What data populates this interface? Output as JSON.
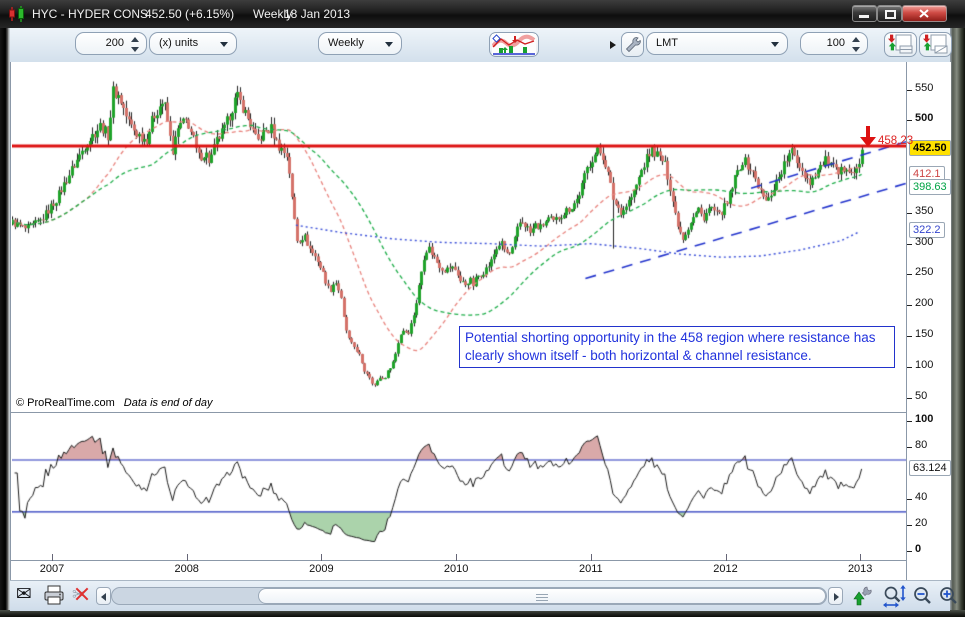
{
  "window": {
    "title": {
      "symbol": "HYC - HYDER CONS",
      "price": "452.50 (+6.15%)",
      "timeframe": "Weekly",
      "date": "18 Jan 2013"
    }
  },
  "toolbar": {
    "units_value": "200",
    "units_mode": "(x) units",
    "timeframe": "Weekly",
    "order_type": "LMT",
    "order_qty": "100"
  },
  "footer": {
    "copyright": "© ProRealTime.com",
    "note": "Data is end of day"
  },
  "annotation": {
    "text": "Potential shorting opportunity in the 458 region where resistance has clearly shown itself - both horizontal & channel resistance."
  },
  "chart_data": {
    "type": "candlestick",
    "symbol": "HYC - HYDER CONS",
    "timeframe": "Weekly",
    "last_date": "18 Jan 2013",
    "colors": {
      "up": "#1fa32a",
      "down": "#d4726a",
      "wick": "#222222",
      "ma_red": "#e8837d",
      "ma_green": "#1fae4a",
      "ma_blue": "#3a4fd8",
      "channel": "#2233cc",
      "resistance": "#dd1111",
      "last_box_bg": "#ffe100",
      "rsi_line": "#1a1a1a",
      "rsi_level": "#2233bb",
      "rsi_over_fill": "#d9a9a9",
      "rsi_under_fill": "#abd3ab"
    },
    "x_axis": {
      "years": [
        2007,
        2008,
        2009,
        2010,
        2011,
        2012,
        2013
      ],
      "year_min": 2006.703,
      "year_max": 2013.34
    },
    "y_axis": {
      "price_min": 27,
      "price_max": 593,
      "ticks": [
        {
          "label": "550",
          "value": 550,
          "bold": false
        },
        {
          "label": "500",
          "value": 500,
          "bold": true
        },
        {
          "label": "350",
          "value": 350,
          "bold": false
        },
        {
          "label": "300",
          "value": 300,
          "bold": false
        },
        {
          "label": "250",
          "value": 250,
          "bold": false
        },
        {
          "label": "200",
          "value": 200,
          "bold": false
        },
        {
          "label": "150",
          "value": 150,
          "bold": false
        },
        {
          "label": "100",
          "value": 100,
          "bold": false
        },
        {
          "label": "50",
          "value": 50,
          "bold": false
        }
      ]
    },
    "resistance": {
      "level": 458.23,
      "label": "458.23"
    },
    "last_price": {
      "value": 452.5,
      "label": "452.50"
    },
    "ma": {
      "red": {
        "period": 30,
        "label": "412.1"
      },
      "green": {
        "period": 55,
        "label": "398.63"
      },
      "blue": {
        "label": "322.2",
        "anchors": [
          [
            2008.81,
            330
          ],
          [
            2009.15,
            318
          ],
          [
            2009.52,
            308
          ],
          [
            2009.89,
            302
          ],
          [
            2010.26,
            300
          ],
          [
            2010.63,
            296
          ],
          [
            2011.0,
            300
          ],
          [
            2011.37,
            292
          ],
          [
            2011.67,
            283
          ],
          [
            2011.97,
            278
          ],
          [
            2012.26,
            280
          ],
          [
            2012.56,
            290
          ],
          [
            2012.86,
            305
          ],
          [
            2013.0,
            320
          ]
        ]
      }
    },
    "channel": {
      "upper": [
        [
          2012.19,
          390
        ],
        [
          2013.35,
          466
        ]
      ],
      "lower": [
        [
          2010.96,
          243.5
        ],
        [
          2013.35,
          398.4
        ]
      ]
    },
    "candles": {
      "year_start": 2006.703,
      "year_end": 2013.02,
      "weeks_per_step": 1,
      "anchors": [
        [
          2006.7,
          335
        ],
        [
          2006.81,
          323
        ],
        [
          2006.92,
          338
        ],
        [
          2007.03,
          372
        ],
        [
          2007.14,
          418
        ],
        [
          2007.25,
          462
        ],
        [
          2007.36,
          492
        ],
        [
          2007.42,
          474
        ],
        [
          2007.45,
          548
        ],
        [
          2007.5,
          538
        ],
        [
          2007.56,
          500
        ],
        [
          2007.62,
          480
        ],
        [
          2007.7,
          468
        ],
        [
          2007.75,
          505
        ],
        [
          2007.8,
          524
        ],
        [
          2007.83,
          531
        ],
        [
          2007.87,
          482
        ],
        [
          2007.89,
          446
        ],
        [
          2007.94,
          490
        ],
        [
          2008.0,
          500
        ],
        [
          2008.05,
          468
        ],
        [
          2008.08,
          440
        ],
        [
          2008.14,
          447
        ],
        [
          2008.17,
          432
        ],
        [
          2008.22,
          466
        ],
        [
          2008.28,
          486
        ],
        [
          2008.33,
          516
        ],
        [
          2008.37,
          540
        ],
        [
          2008.42,
          519
        ],
        [
          2008.48,
          489
        ],
        [
          2008.52,
          464
        ],
        [
          2008.57,
          479
        ],
        [
          2008.63,
          487
        ],
        [
          2008.67,
          461
        ],
        [
          2008.71,
          452
        ],
        [
          2008.75,
          441
        ],
        [
          2008.78,
          372
        ],
        [
          2008.82,
          304
        ],
        [
          2008.87,
          313
        ],
        [
          2008.92,
          289
        ],
        [
          2008.97,
          274
        ],
        [
          2009.02,
          246
        ],
        [
          2009.06,
          222
        ],
        [
          2009.1,
          241
        ],
        [
          2009.14,
          217
        ],
        [
          2009.17,
          170
        ],
        [
          2009.21,
          139
        ],
        [
          2009.25,
          131
        ],
        [
          2009.28,
          119
        ],
        [
          2009.31,
          95
        ],
        [
          2009.35,
          88
        ],
        [
          2009.37,
          77
        ],
        [
          2009.4,
          69
        ],
        [
          2009.43,
          84
        ],
        [
          2009.46,
          79
        ],
        [
          2009.5,
          96
        ],
        [
          2009.54,
          113
        ],
        [
          2009.58,
          151
        ],
        [
          2009.61,
          161
        ],
        [
          2009.64,
          154
        ],
        [
          2009.67,
          173
        ],
        [
          2009.7,
          201
        ],
        [
          2009.73,
          241
        ],
        [
          2009.76,
          279
        ],
        [
          2009.79,
          296
        ],
        [
          2009.82,
          284
        ],
        [
          2009.86,
          269
        ],
        [
          2009.89,
          261
        ],
        [
          2009.92,
          257
        ],
        [
          2009.96,
          262
        ],
        [
          2010.0,
          257
        ],
        [
          2010.03,
          239
        ],
        [
          2010.07,
          234
        ],
        [
          2010.1,
          243
        ],
        [
          2010.13,
          231
        ],
        [
          2010.15,
          246
        ],
        [
          2010.19,
          252
        ],
        [
          2010.23,
          261
        ],
        [
          2010.26,
          271
        ],
        [
          2010.29,
          289
        ],
        [
          2010.33,
          303
        ],
        [
          2010.36,
          289
        ],
        [
          2010.39,
          281
        ],
        [
          2010.42,
          293
        ],
        [
          2010.45,
          321
        ],
        [
          2010.48,
          338
        ],
        [
          2010.52,
          329
        ],
        [
          2010.55,
          317
        ],
        [
          2010.59,
          331
        ],
        [
          2010.62,
          324
        ],
        [
          2010.65,
          333
        ],
        [
          2010.69,
          341
        ],
        [
          2010.72,
          334
        ],
        [
          2010.76,
          343
        ],
        [
          2010.79,
          349
        ],
        [
          2010.83,
          356
        ],
        [
          2010.86,
          361
        ],
        [
          2010.9,
          373
        ],
        [
          2010.93,
          391
        ],
        [
          2010.97,
          421
        ],
        [
          2011.01,
          439
        ],
        [
          2011.05,
          450
        ],
        [
          2011.08,
          446
        ],
        [
          2011.11,
          428
        ],
        [
          2011.14,
          399
        ],
        [
          2011.17,
          368
        ],
        [
          2011.2,
          359
        ],
        [
          2011.23,
          351
        ],
        [
          2011.27,
          366
        ],
        [
          2011.31,
          379
        ],
        [
          2011.34,
          396
        ],
        [
          2011.38,
          421
        ],
        [
          2011.42,
          441
        ],
        [
          2011.45,
          452
        ],
        [
          2011.48,
          447
        ],
        [
          2011.51,
          439
        ],
        [
          2011.54,
          433
        ],
        [
          2011.56,
          419
        ],
        [
          2011.59,
          389
        ],
        [
          2011.62,
          354
        ],
        [
          2011.65,
          329
        ],
        [
          2011.68,
          309
        ],
        [
          2011.71,
          321
        ],
        [
          2011.74,
          336
        ],
        [
          2011.77,
          346
        ],
        [
          2011.8,
          356
        ],
        [
          2011.83,
          341
        ],
        [
          2011.86,
          351
        ],
        [
          2011.89,
          359
        ],
        [
          2011.92,
          351
        ],
        [
          2011.95,
          344
        ],
        [
          2011.98,
          356
        ],
        [
          2012.01,
          363
        ],
        [
          2012.04,
          386
        ],
        [
          2012.07,
          406
        ],
        [
          2012.1,
          423
        ],
        [
          2012.13,
          436
        ],
        [
          2012.16,
          428
        ],
        [
          2012.19,
          419
        ],
        [
          2012.22,
          407
        ],
        [
          2012.25,
          389
        ],
        [
          2012.28,
          374
        ],
        [
          2012.31,
          367
        ],
        [
          2012.34,
          383
        ],
        [
          2012.37,
          399
        ],
        [
          2012.4,
          411
        ],
        [
          2012.43,
          426
        ],
        [
          2012.46,
          439
        ],
        [
          2012.49,
          449
        ],
        [
          2012.52,
          439
        ],
        [
          2012.55,
          427
        ],
        [
          2012.57,
          419
        ],
        [
          2012.6,
          407
        ],
        [
          2012.63,
          399
        ],
        [
          2012.66,
          413
        ],
        [
          2012.69,
          421
        ],
        [
          2012.72,
          429
        ],
        [
          2012.75,
          436
        ],
        [
          2012.78,
          427
        ],
        [
          2012.81,
          419
        ],
        [
          2012.84,
          411
        ],
        [
          2012.87,
          421
        ],
        [
          2012.9,
          429
        ],
        [
          2012.93,
          419
        ],
        [
          2012.96,
          414
        ],
        [
          2012.99,
          426
        ],
        [
          2013.02,
          452.5
        ]
      ],
      "forced": [
        {
          "year": 2007.45,
          "high": 563
        },
        {
          "year": 2008.37,
          "high": 556
        },
        {
          "year": 2011.08,
          "high": 456.5
        },
        {
          "year": 2011.17,
          "low": 292
        },
        {
          "year": 2013.02,
          "close": 452.5,
          "high": 458
        }
      ]
    },
    "rsi": {
      "period": 14,
      "upper_level": 70,
      "lower_level": 30,
      "last_value": 63.124,
      "last_label": "63.124",
      "y_min": -7,
      "y_max": 105.4,
      "ticks": [
        {
          "label": "100",
          "value": 100,
          "bold": true
        },
        {
          "label": "80",
          "value": 80,
          "bold": false
        },
        {
          "label": "40",
          "value": 40,
          "bold": false
        },
        {
          "label": "20",
          "value": 20,
          "bold": false
        },
        {
          "label": "0",
          "value": 0,
          "bold": true
        }
      ]
    }
  }
}
